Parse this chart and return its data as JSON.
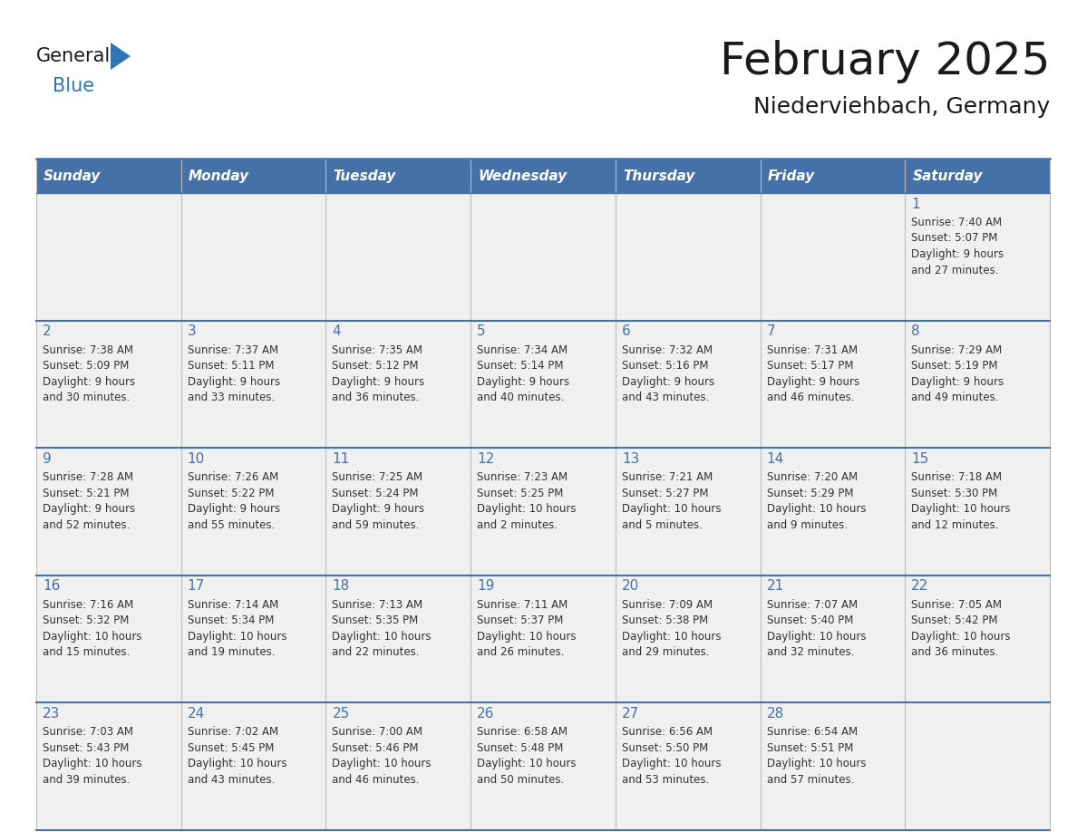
{
  "title": "February 2025",
  "subtitle": "Niederviehbach, Germany",
  "header_color": "#4472A8",
  "header_text_color": "#FFFFFF",
  "cell_bg_color": "#F0F0F0",
  "border_color": "#4472A8",
  "day_number_color": "#4472A8",
  "text_color": "#333333",
  "days_of_week": [
    "Sunday",
    "Monday",
    "Tuesday",
    "Wednesday",
    "Thursday",
    "Friday",
    "Saturday"
  ],
  "weeks": [
    [
      {
        "day": null,
        "info": null
      },
      {
        "day": null,
        "info": null
      },
      {
        "day": null,
        "info": null
      },
      {
        "day": null,
        "info": null
      },
      {
        "day": null,
        "info": null
      },
      {
        "day": null,
        "info": null
      },
      {
        "day": 1,
        "info": "Sunrise: 7:40 AM\nSunset: 5:07 PM\nDaylight: 9 hours\nand 27 minutes."
      }
    ],
    [
      {
        "day": 2,
        "info": "Sunrise: 7:38 AM\nSunset: 5:09 PM\nDaylight: 9 hours\nand 30 minutes."
      },
      {
        "day": 3,
        "info": "Sunrise: 7:37 AM\nSunset: 5:11 PM\nDaylight: 9 hours\nand 33 minutes."
      },
      {
        "day": 4,
        "info": "Sunrise: 7:35 AM\nSunset: 5:12 PM\nDaylight: 9 hours\nand 36 minutes."
      },
      {
        "day": 5,
        "info": "Sunrise: 7:34 AM\nSunset: 5:14 PM\nDaylight: 9 hours\nand 40 minutes."
      },
      {
        "day": 6,
        "info": "Sunrise: 7:32 AM\nSunset: 5:16 PM\nDaylight: 9 hours\nand 43 minutes."
      },
      {
        "day": 7,
        "info": "Sunrise: 7:31 AM\nSunset: 5:17 PM\nDaylight: 9 hours\nand 46 minutes."
      },
      {
        "day": 8,
        "info": "Sunrise: 7:29 AM\nSunset: 5:19 PM\nDaylight: 9 hours\nand 49 minutes."
      }
    ],
    [
      {
        "day": 9,
        "info": "Sunrise: 7:28 AM\nSunset: 5:21 PM\nDaylight: 9 hours\nand 52 minutes."
      },
      {
        "day": 10,
        "info": "Sunrise: 7:26 AM\nSunset: 5:22 PM\nDaylight: 9 hours\nand 55 minutes."
      },
      {
        "day": 11,
        "info": "Sunrise: 7:25 AM\nSunset: 5:24 PM\nDaylight: 9 hours\nand 59 minutes."
      },
      {
        "day": 12,
        "info": "Sunrise: 7:23 AM\nSunset: 5:25 PM\nDaylight: 10 hours\nand 2 minutes."
      },
      {
        "day": 13,
        "info": "Sunrise: 7:21 AM\nSunset: 5:27 PM\nDaylight: 10 hours\nand 5 minutes."
      },
      {
        "day": 14,
        "info": "Sunrise: 7:20 AM\nSunset: 5:29 PM\nDaylight: 10 hours\nand 9 minutes."
      },
      {
        "day": 15,
        "info": "Sunrise: 7:18 AM\nSunset: 5:30 PM\nDaylight: 10 hours\nand 12 minutes."
      }
    ],
    [
      {
        "day": 16,
        "info": "Sunrise: 7:16 AM\nSunset: 5:32 PM\nDaylight: 10 hours\nand 15 minutes."
      },
      {
        "day": 17,
        "info": "Sunrise: 7:14 AM\nSunset: 5:34 PM\nDaylight: 10 hours\nand 19 minutes."
      },
      {
        "day": 18,
        "info": "Sunrise: 7:13 AM\nSunset: 5:35 PM\nDaylight: 10 hours\nand 22 minutes."
      },
      {
        "day": 19,
        "info": "Sunrise: 7:11 AM\nSunset: 5:37 PM\nDaylight: 10 hours\nand 26 minutes."
      },
      {
        "day": 20,
        "info": "Sunrise: 7:09 AM\nSunset: 5:38 PM\nDaylight: 10 hours\nand 29 minutes."
      },
      {
        "day": 21,
        "info": "Sunrise: 7:07 AM\nSunset: 5:40 PM\nDaylight: 10 hours\nand 32 minutes."
      },
      {
        "day": 22,
        "info": "Sunrise: 7:05 AM\nSunset: 5:42 PM\nDaylight: 10 hours\nand 36 minutes."
      }
    ],
    [
      {
        "day": 23,
        "info": "Sunrise: 7:03 AM\nSunset: 5:43 PM\nDaylight: 10 hours\nand 39 minutes."
      },
      {
        "day": 24,
        "info": "Sunrise: 7:02 AM\nSunset: 5:45 PM\nDaylight: 10 hours\nand 43 minutes."
      },
      {
        "day": 25,
        "info": "Sunrise: 7:00 AM\nSunset: 5:46 PM\nDaylight: 10 hours\nand 46 minutes."
      },
      {
        "day": 26,
        "info": "Sunrise: 6:58 AM\nSunset: 5:48 PM\nDaylight: 10 hours\nand 50 minutes."
      },
      {
        "day": 27,
        "info": "Sunrise: 6:56 AM\nSunset: 5:50 PM\nDaylight: 10 hours\nand 53 minutes."
      },
      {
        "day": 28,
        "info": "Sunrise: 6:54 AM\nSunset: 5:51 PM\nDaylight: 10 hours\nand 57 minutes."
      },
      {
        "day": null,
        "info": null
      }
    ]
  ],
  "logo_general_color": "#1a1a1a",
  "logo_blue_color": "#2E75B6",
  "logo_triangle_color": "#2E75B6",
  "title_fontsize": 36,
  "subtitle_fontsize": 18,
  "header_fontsize": 11,
  "day_number_fontsize": 11,
  "info_fontsize": 8.5
}
